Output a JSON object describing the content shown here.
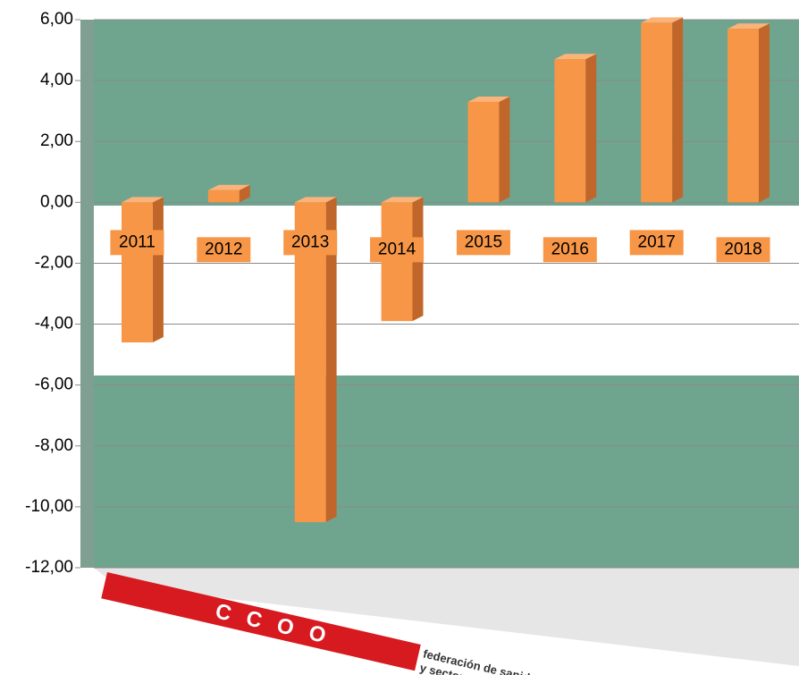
{
  "chart_data": {
    "type": "bar",
    "categories": [
      "2011",
      "2012",
      "2013",
      "2014",
      "2015",
      "2016",
      "2017",
      "2018"
    ],
    "values": [
      -4.6,
      0.4,
      -10.5,
      -3.9,
      3.3,
      4.7,
      5.9,
      5.7
    ],
    "color": "#f79646",
    "ylim": [
      -12,
      6
    ],
    "yticks": [
      {
        "value": 6,
        "label": "6,00"
      },
      {
        "value": 4,
        "label": "4,00"
      },
      {
        "value": 2,
        "label": "2,00"
      },
      {
        "value": 0,
        "label": "0,00"
      },
      {
        "value": -2,
        "label": "-2,00"
      },
      {
        "value": -4,
        "label": "-4,00"
      },
      {
        "value": -6,
        "label": "-6,00"
      },
      {
        "value": -8,
        "label": "-8,00"
      },
      {
        "value": -10,
        "label": "-10,00"
      },
      {
        "value": -12,
        "label": "-12,00"
      }
    ],
    "grid": true,
    "logo_text": "CCOO",
    "logo_caption": [
      "federación de sanidad",
      "y sectores sociosanitarios"
    ]
  }
}
